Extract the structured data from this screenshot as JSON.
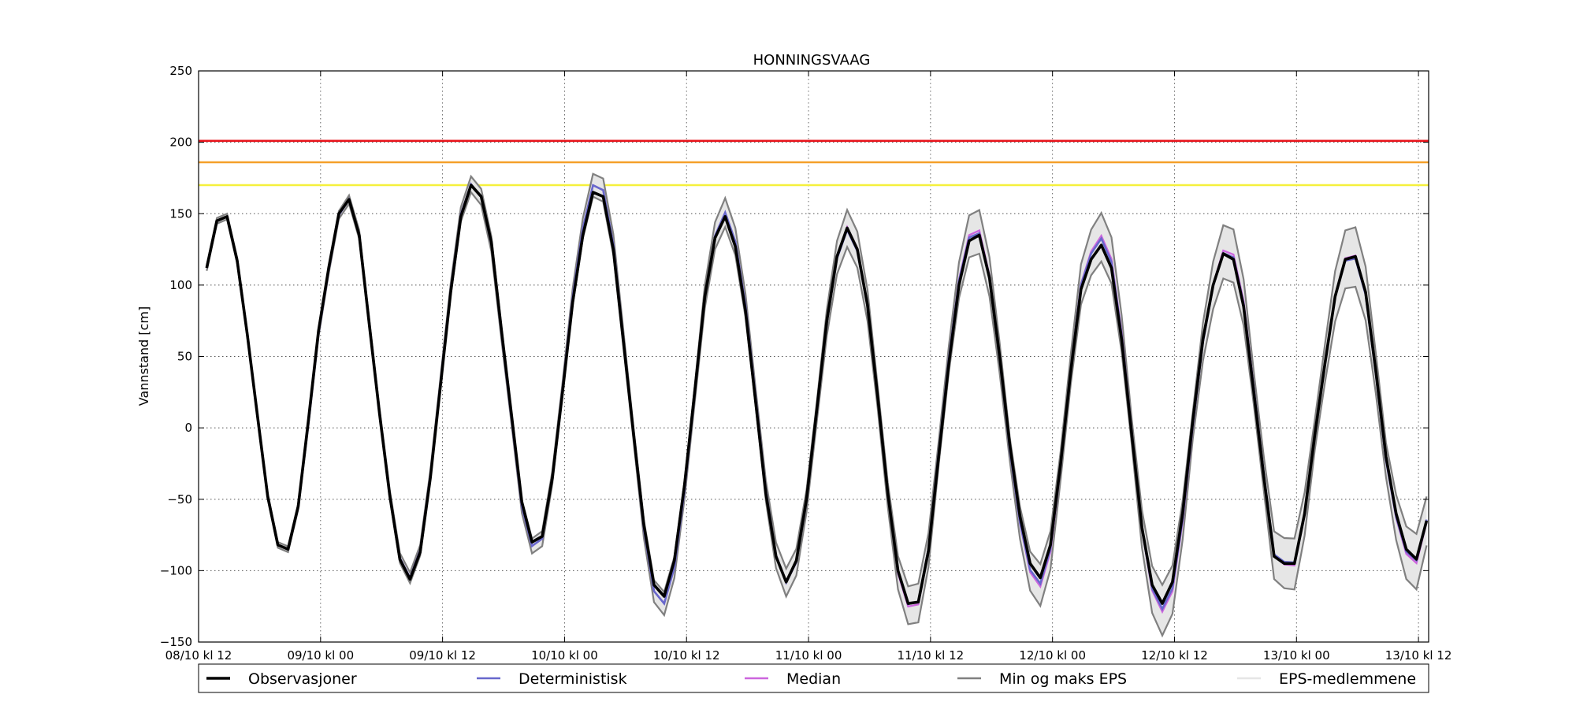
{
  "chart_data": {
    "type": "line",
    "title": "HONNINGSVAAG",
    "xlabel": "",
    "ylabel": "Vannstand [cm]",
    "x_unit": "hours since 08/10 kl 12",
    "xlim": [
      0,
      121
    ],
    "ylim": [
      -150,
      250
    ],
    "yticks": [
      -150,
      -100,
      -50,
      0,
      50,
      100,
      150,
      200,
      250
    ],
    "ytick_labels": [
      "−150",
      "−100",
      "−50",
      "0",
      "50",
      "100",
      "150",
      "200",
      "250"
    ],
    "xticks": [
      0,
      12,
      24,
      36,
      48,
      60,
      72,
      84,
      96,
      108,
      120
    ],
    "xtick_labels": [
      "08/10 kl 12",
      "09/10 kl 00",
      "09/10 kl 12",
      "10/10 kl 00",
      "10/10 kl 12",
      "11/10 kl 00",
      "11/10 kl 12",
      "12/10 kl 00",
      "12/10 kl 12",
      "13/10 kl 00",
      "13/10 kl 12"
    ],
    "grid": true,
    "legend_position": "bottom",
    "threshold_lines": [
      {
        "value": 201,
        "color": "#e8141b"
      },
      {
        "value": 186,
        "color": "#f5a02a"
      },
      {
        "value": 170,
        "color": "#f5f03c"
      }
    ],
    "observations": {
      "name": "Observasjoner",
      "color": "#000000",
      "points": [
        [
          0.8,
          112
        ],
        [
          1.8,
          145
        ],
        [
          2.8,
          148
        ],
        [
          3.8,
          117
        ],
        [
          4.8,
          65
        ],
        [
          5.8,
          8
        ],
        [
          6.8,
          -48
        ],
        [
          7.8,
          -82
        ],
        [
          8.8,
          -85
        ],
        [
          9.8,
          -55
        ],
        [
          10.8,
          5
        ],
        [
          11.8,
          68
        ],
        [
          12.8,
          112
        ],
        [
          13.8,
          150
        ],
        [
          14.8,
          160
        ],
        [
          15.8,
          135
        ],
        [
          16.8,
          72
        ],
        [
          17.8,
          10
        ],
        [
          18.8,
          -47
        ],
        [
          19.8,
          -92
        ],
        [
          20.8,
          -106
        ],
        [
          21.8,
          -87
        ],
        [
          22.8,
          -35
        ],
        [
          23.8,
          30
        ],
        [
          24.8,
          95
        ],
        [
          25.8,
          148
        ],
        [
          26.8,
          170
        ],
        [
          27.8,
          162
        ],
        [
          28.8,
          130
        ],
        [
          29.8,
          68
        ],
        [
          30.8,
          8
        ],
        [
          31.8,
          -52
        ],
        [
          32.8,
          -80
        ],
        [
          33.8,
          -76
        ],
        [
          34.8,
          -35
        ],
        [
          35.8,
          25
        ],
        [
          36.8,
          88
        ],
        [
          37.8,
          135
        ],
        [
          38.8,
          165
        ],
        [
          39.8,
          162
        ],
        [
          40.8,
          125
        ],
        [
          41.8,
          60
        ],
        [
          42.8,
          -5
        ],
        [
          43.8,
          -68
        ],
        [
          44.8,
          -110
        ],
        [
          45.8,
          -118
        ],
        [
          46.8,
          -93
        ],
        [
          47.8,
          -40
        ],
        [
          48.8,
          25
        ],
        [
          49.8,
          92
        ],
        [
          50.8,
          133
        ],
        [
          51.8,
          148
        ],
        [
          52.8,
          127
        ],
        [
          53.8,
          82
        ],
        [
          54.8,
          18
        ],
        [
          55.8,
          -46
        ],
        [
          56.8,
          -90
        ],
        [
          57.8,
          -108
        ],
        [
          58.8,
          -93
        ],
        [
          59.8,
          -50
        ],
        [
          60.8,
          12
        ],
        [
          61.8,
          75
        ],
        [
          62.8,
          120
        ],
        [
          63.8,
          140
        ],
        [
          64.8,
          125
        ],
        [
          65.8,
          86
        ],
        [
          66.8,
          22
        ],
        [
          67.8,
          -46
        ],
        [
          68.8,
          -100
        ],
        [
          69.8,
          -123
        ],
        [
          70.8,
          -122
        ],
        [
          71.8,
          -86
        ],
        [
          72.8,
          -20
        ],
        [
          73.8,
          45
        ],
        [
          74.8,
          100
        ],
        [
          75.8,
          131
        ],
        [
          76.8,
          135
        ],
        [
          77.8,
          105
        ],
        [
          78.8,
          50
        ],
        [
          79.8,
          -12
        ],
        [
          80.8,
          -62
        ],
        [
          81.8,
          -95
        ],
        [
          82.8,
          -105
        ],
        [
          83.8,
          -82
        ],
        [
          84.8,
          -25
        ],
        [
          85.8,
          40
        ],
        [
          86.8,
          97
        ],
        [
          87.8,
          118
        ],
        [
          88.8,
          128
        ],
        [
          89.8,
          112
        ],
        [
          90.8,
          62
        ],
        [
          91.8,
          -5
        ],
        [
          92.8,
          -70
        ],
        [
          93.8,
          -110
        ],
        [
          94.8,
          -123
        ],
        [
          95.8,
          -108
        ],
        [
          96.8,
          -60
        ],
        [
          97.8,
          5
        ],
        [
          98.8,
          62
        ],
        [
          99.8,
          100
        ],
        [
          100.8,
          122
        ],
        [
          101.8,
          118
        ],
        [
          102.8,
          85
        ],
        [
          103.8,
          25
        ],
        [
          104.8,
          -35
        ],
        [
          105.8,
          -90
        ],
        [
          106.8,
          -95
        ],
        [
          107.8,
          -95
        ],
        [
          108.8,
          -60
        ],
        [
          109.8,
          -5
        ],
        [
          110.8,
          45
        ],
        [
          111.8,
          92
        ],
        [
          112.8,
          118
        ],
        [
          113.8,
          120
        ],
        [
          114.8,
          95
        ],
        [
          115.8,
          40
        ],
        [
          116.8,
          -20
        ],
        [
          117.8,
          -60
        ],
        [
          118.8,
          -85
        ],
        [
          119.8,
          -92
        ],
        [
          120.8,
          -65
        ]
      ]
    },
    "series": [
      {
        "name": "Observasjoner",
        "color": "#000000"
      },
      {
        "name": "Deterministisk",
        "color": "#6868cc"
      },
      {
        "name": "Median",
        "color": "#cc66dd"
      },
      {
        "name": "Min og maks EPS",
        "color": "#808080"
      },
      {
        "name": "EPS-medlemmene",
        "color": "#e6e6e6"
      }
    ]
  }
}
